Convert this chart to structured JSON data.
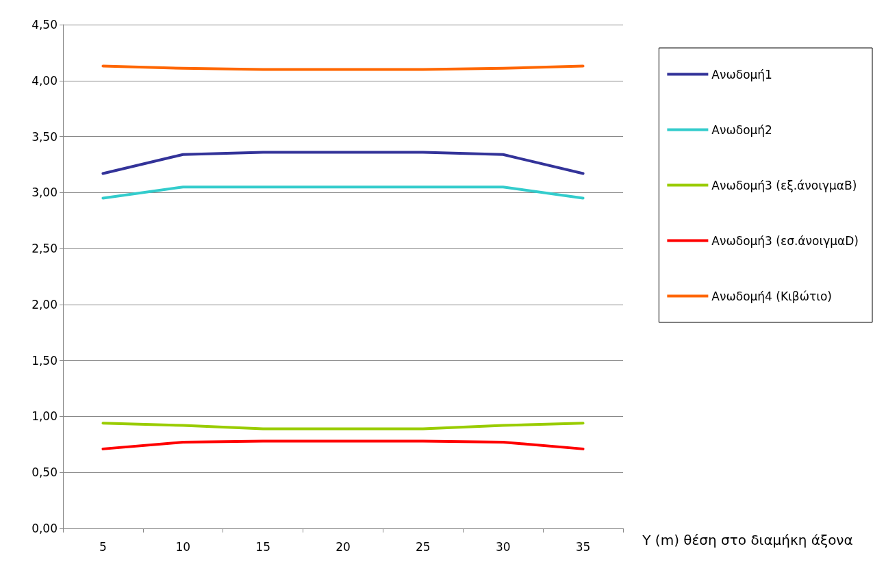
{
  "chart_data": {
    "type": "line",
    "xlabel": "Y (m) θέση στο διαμήκη άξονα",
    "categories": [
      "5",
      "10",
      "15",
      "20",
      "25",
      "30",
      "35"
    ],
    "series": [
      {
        "name": "Ανωδομή1",
        "color": "#333399",
        "values": [
          3.17,
          3.34,
          3.36,
          3.36,
          3.36,
          3.34,
          3.17
        ]
      },
      {
        "name": "Ανωδομή2",
        "color": "#33cccc",
        "values": [
          2.95,
          3.05,
          3.05,
          3.05,
          3.05,
          3.05,
          2.95
        ]
      },
      {
        "name": "Ανωδομή3 (εξ.άνοιγμαΒ)",
        "color": "#99cc00",
        "values": [
          0.94,
          0.92,
          0.89,
          0.89,
          0.89,
          0.92,
          0.94
        ]
      },
      {
        "name": "Ανωδομή3 (εσ.άνοιγμαD)",
        "color": "#ff0000",
        "values": [
          0.71,
          0.77,
          0.78,
          0.78,
          0.78,
          0.77,
          0.71
        ]
      },
      {
        "name": "Ανωδομή4 (Κιβώτιο)",
        "color": "#ff6600",
        "values": [
          4.13,
          4.11,
          4.1,
          4.1,
          4.1,
          4.11,
          4.13
        ]
      }
    ],
    "ylim": [
      0,
      4.5
    ],
    "yticks": [
      {
        "value": 0,
        "label": "0,00"
      },
      {
        "value": 0.5,
        "label": "0,50"
      },
      {
        "value": 1,
        "label": "1,00"
      },
      {
        "value": 1.5,
        "label": "1,50"
      },
      {
        "value": 2,
        "label": "2,00"
      },
      {
        "value": 2.5,
        "label": "2,50"
      },
      {
        "value": 3,
        "label": "3,00"
      },
      {
        "value": 3.5,
        "label": "3,50"
      },
      {
        "value": 4,
        "label": "4,00"
      },
      {
        "value": 4.5,
        "label": "4,50"
      }
    ],
    "grid": "y",
    "legend": "right",
    "marker": "none",
    "line_style": "solid"
  }
}
